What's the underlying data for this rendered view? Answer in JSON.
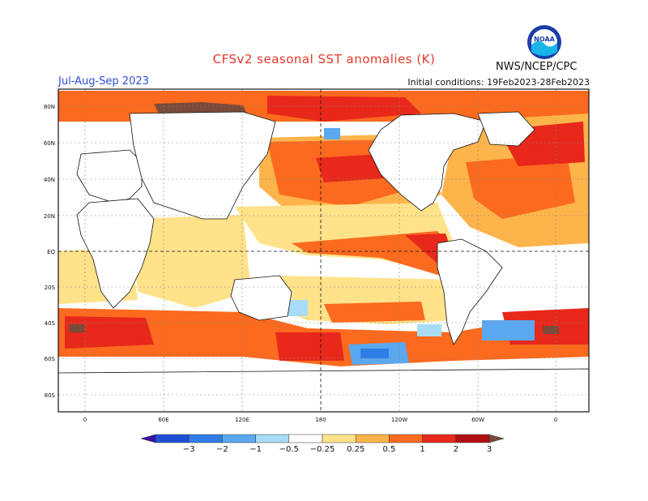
{
  "header": {
    "title": "CFSv2 seasonal SST anomalies (K)",
    "season": "Jul-Aug-Sep 2023",
    "initial_conditions": "Initial conditions: 19Feb2023-28Feb2023",
    "credit": "NWS/NCEP/CPC",
    "logo_text": "NOAA"
  },
  "axes": {
    "lat_labels": [
      "80N",
      "60N",
      "40N",
      "20N",
      "EQ",
      "20S",
      "40S",
      "60S",
      "80S"
    ],
    "lon_labels": [
      "0",
      "60E",
      "120E",
      "180",
      "120W",
      "60W",
      "0"
    ]
  },
  "colorbar": {
    "tick_labels": [
      "−3",
      "−2",
      "−1",
      "−0.5",
      "−0.25",
      "0.25",
      "0.5",
      "1",
      "2",
      "3"
    ],
    "colors": [
      "#3b0fa8",
      "#1e50d6",
      "#2f7ee8",
      "#5aa8f0",
      "#a8dcf6",
      "#ffffff",
      "#ffe28a",
      "#fdb44b",
      "#fb6a1e",
      "#e8281b",
      "#b00f0f",
      "#7a4a3a"
    ]
  }
}
